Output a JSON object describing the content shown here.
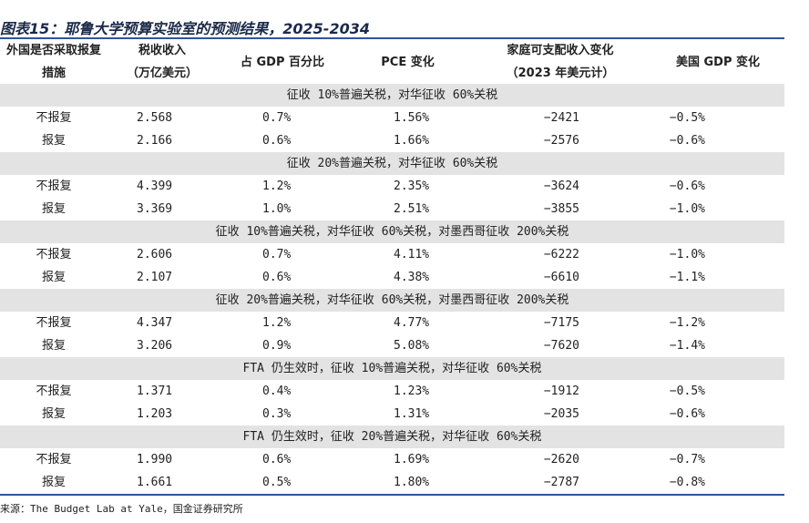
{
  "title": "图表15：耶鲁大学预算实验室的预测结果，2025-2034",
  "table": {
    "header": [
      [
        "外国是否采取报复",
        "措施"
      ],
      [
        "税收收入",
        "（万亿美元）"
      ],
      [
        "占 GDP 百分比"
      ],
      [
        "PCE 变化"
      ],
      [
        "家庭可支配收入变化",
        "（2023 年美元计）"
      ],
      [
        "美国 GDP 变化"
      ]
    ],
    "groups": [
      {
        "title": "征收 10%普遍关税，对华征收 60%关税",
        "rows": [
          [
            "不报复",
            "2.568",
            "0.7%",
            "1.56%",
            "−2421",
            "−0.5%"
          ],
          [
            "报复",
            "2.166",
            "0.6%",
            "1.66%",
            "−2576",
            "−0.6%"
          ]
        ]
      },
      {
        "title": "征收 20%普遍关税，对华征收 60%关税",
        "rows": [
          [
            "不报复",
            "4.399",
            "1.2%",
            "2.35%",
            "−3624",
            "−0.6%"
          ],
          [
            "报复",
            "3.369",
            "1.0%",
            "2.51%",
            "−3855",
            "−1.0%"
          ]
        ]
      },
      {
        "title": "征收 10%普遍关税，对华征收 60%关税，对墨西哥征收 200%关税",
        "rows": [
          [
            "不报复",
            "2.606",
            "0.7%",
            "4.11%",
            "−6222",
            "−1.0%"
          ],
          [
            "报复",
            "2.107",
            "0.6%",
            "4.38%",
            "−6610",
            "−1.1%"
          ]
        ]
      },
      {
        "title": "征收 20%普遍关税，对华征收 60%关税，对墨西哥征收 200%关税",
        "rows": [
          [
            "不报复",
            "4.347",
            "1.2%",
            "4.77%",
            "−7175",
            "−1.2%"
          ],
          [
            "报复",
            "3.206",
            "0.9%",
            "5.08%",
            "−7620",
            "−1.4%"
          ]
        ]
      },
      {
        "title": "FTA 仍生效时，征收 10%普遍关税，对华征收 60%关税",
        "rows": [
          [
            "不报复",
            "1.371",
            "0.4%",
            "1.23%",
            "−1912",
            "−0.5%"
          ],
          [
            "报复",
            "1.203",
            "0.3%",
            "1.31%",
            "−2035",
            "−0.6%"
          ]
        ]
      },
      {
        "title": "FTA 仍生效时，征收 20%普遍关税，对华征收 60%关税",
        "rows": [
          [
            "不报复",
            "1.990",
            "0.6%",
            "1.69%",
            "−2620",
            "−0.7%"
          ],
          [
            "报复",
            "1.661",
            "0.5%",
            "1.80%",
            "−2787",
            "−0.8%"
          ]
        ]
      }
    ]
  },
  "source": "来源：The Budget Lab at Yale，国金证券研究所"
}
